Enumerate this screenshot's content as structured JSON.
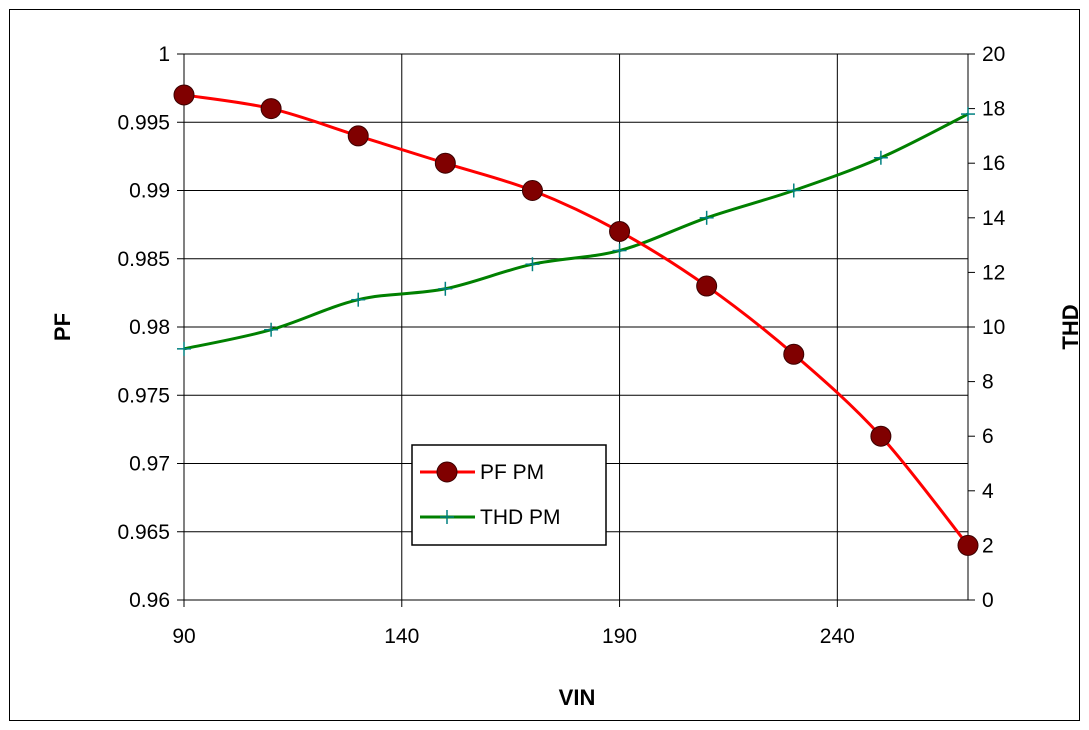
{
  "chart_data": {
    "type": "line",
    "xlabel": "VIN",
    "ylabel_left": "PF",
    "ylabel_right": "THD",
    "x_ticks": [
      "90",
      "140",
      "190",
      "240"
    ],
    "xlim": [
      90,
      270
    ],
    "ylim_left": [
      0.96,
      1
    ],
    "ylim_right": [
      0,
      20
    ],
    "y_left_ticks": [
      "0.96",
      "0.965",
      "0.97",
      "0.975",
      "0.98",
      "0.985",
      "0.99",
      "0.995",
      "1"
    ],
    "y_right_ticks": [
      "0",
      "2",
      "4",
      "6",
      "8",
      "10",
      "12",
      "14",
      "16",
      "18",
      "20"
    ],
    "grid": true,
    "legend_position": "center-bottom",
    "series": [
      {
        "name": "PF PM",
        "axis": "left",
        "color": "#ff0000",
        "marker_color": "#800000",
        "marker": "circle",
        "x": [
          90,
          110,
          130,
          150,
          170,
          190,
          210,
          230,
          250,
          270
        ],
        "values": [
          0.997,
          0.996,
          0.994,
          0.992,
          0.99,
          0.987,
          0.983,
          0.978,
          0.972,
          0.964
        ]
      },
      {
        "name": "THD PM",
        "axis": "right",
        "color": "#008000",
        "marker_color": "#008080",
        "marker": "plus",
        "x": [
          90,
          110,
          130,
          150,
          170,
          190,
          210,
          230,
          250,
          270
        ],
        "values": [
          9.2,
          9.9,
          11.0,
          11.4,
          12.3,
          12.8,
          14.0,
          15.0,
          16.2,
          17.8
        ]
      }
    ]
  }
}
